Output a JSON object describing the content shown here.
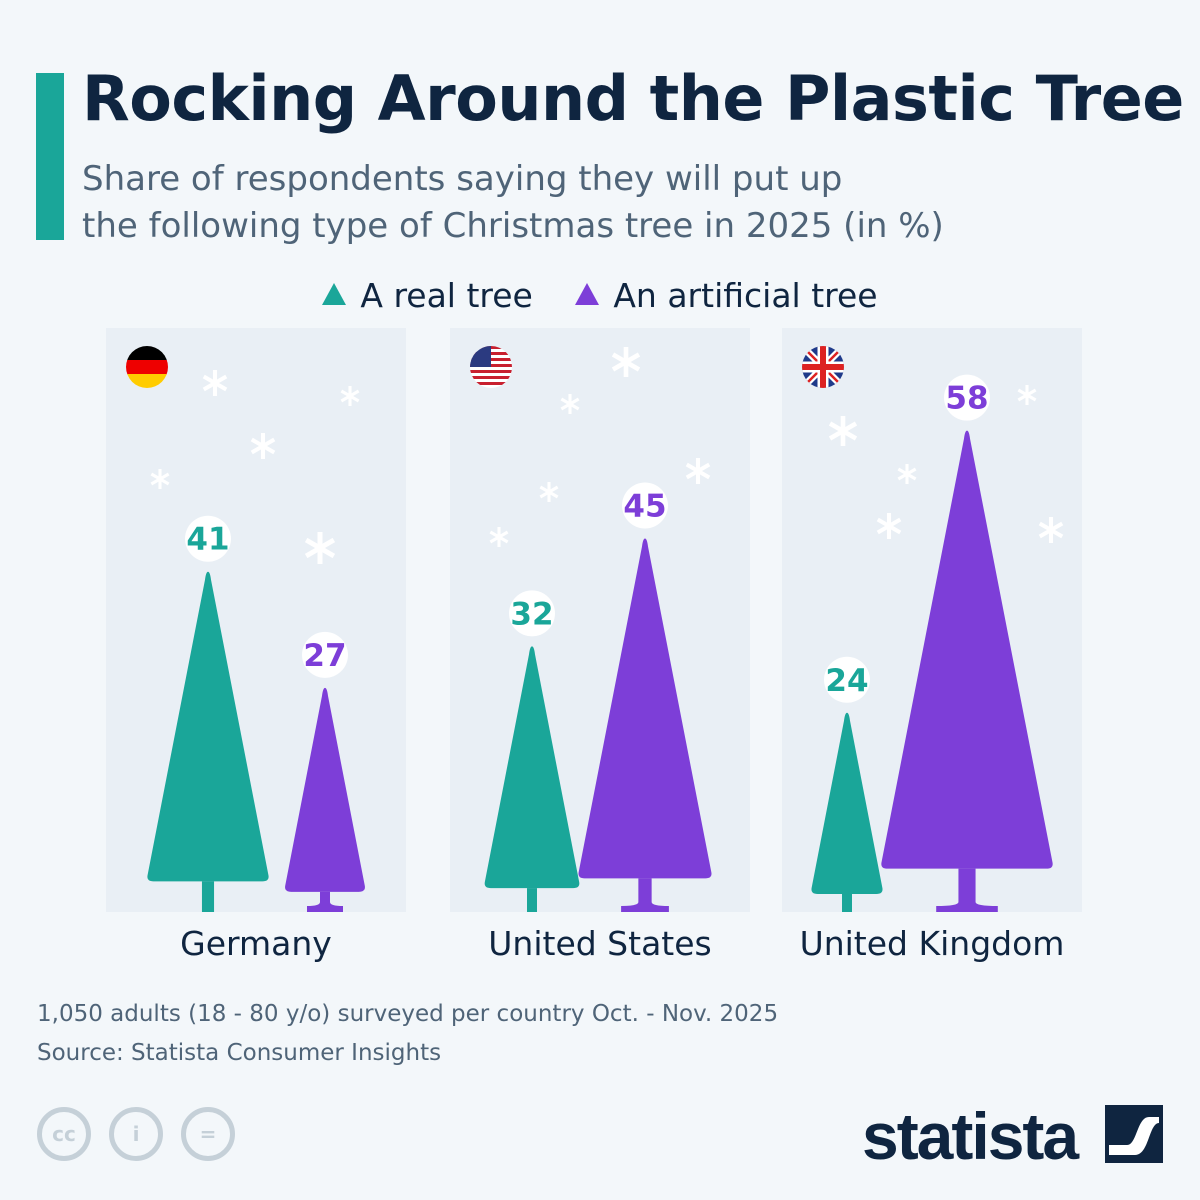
{
  "title": "Rocking Around the Plastic Tree",
  "subtitle_line1": "Share of respondents saying they will put up",
  "subtitle_line2": "the following type of Christmas tree in 2025 (in %)",
  "note": "1,050 adults (18 - 80 y/o) surveyed per country Oct. - Nov. 2025",
  "source": "Source: Statista Consumer Insights",
  "brand": "statista",
  "license_icons": [
    "cc-icon",
    "attribution-icon",
    "no-derivatives-icon"
  ],
  "chart_data": {
    "type": "bar",
    "categories": [
      "Germany",
      "United States",
      "United Kingdom"
    ],
    "series": [
      {
        "name": "A real tree",
        "color": "#1aa699",
        "values": [
          41,
          32,
          24
        ]
      },
      {
        "name": "An artificial tree",
        "color": "#7d3ed8",
        "values": [
          27,
          45,
          58
        ]
      }
    ],
    "legend": "top-center",
    "flags": [
      "germany-flag",
      "usa-flag",
      "uk-flag"
    ]
  }
}
